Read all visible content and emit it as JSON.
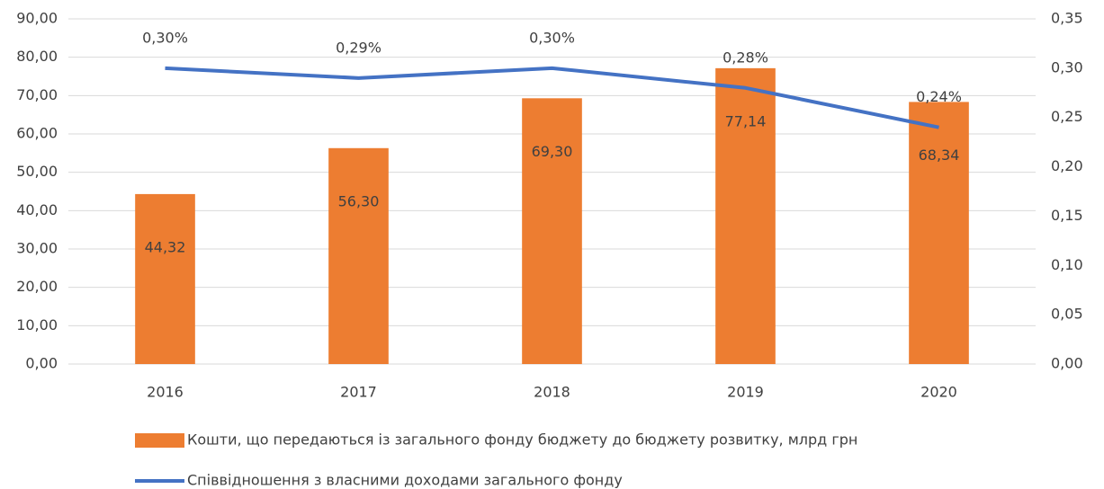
{
  "chart_data": {
    "type": "bar",
    "categories": [
      "2016",
      "2017",
      "2018",
      "2019",
      "2020"
    ],
    "series": [
      {
        "name": "Кошти, що передаються із загального фонду бюджету до бюджету розвитку, млрд грн",
        "color": "#ed7d31",
        "type": "bar",
        "values": [
          44.32,
          56.3,
          69.3,
          77.14,
          68.34
        ],
        "value_labels": [
          "44,32",
          "56,30",
          "69,30",
          "77,14",
          "68,34"
        ]
      },
      {
        "name": "Співвідношення з власними доходами загального фонду",
        "color": "#4472c4",
        "type": "line",
        "axis": "y2",
        "values": [
          0.3,
          0.29,
          0.3,
          0.28,
          0.24
        ],
        "value_labels": [
          "0,30%",
          "0,29%",
          "0,30%",
          "0,28%",
          "0,24%"
        ]
      }
    ],
    "ylim": [
      0,
      90
    ],
    "yticks": [
      {
        "value": 0,
        "label": "0,00"
      },
      {
        "value": 10,
        "label": "10,00"
      },
      {
        "value": 20,
        "label": "20,00"
      },
      {
        "value": 30,
        "label": "30,00"
      },
      {
        "value": 40,
        "label": "40,00"
      },
      {
        "value": 50,
        "label": "50,00"
      },
      {
        "value": 60,
        "label": "60,00"
      },
      {
        "value": 70,
        "label": "70,00"
      },
      {
        "value": 80,
        "label": "80,00"
      },
      {
        "value": 90,
        "label": "90,00"
      }
    ],
    "y2lim": [
      0,
      0.35
    ],
    "y2ticks": [
      {
        "value": 0,
        "label": "0,00"
      },
      {
        "value": 0.05,
        "label": "0,05"
      },
      {
        "value": 0.1,
        "label": "0,10"
      },
      {
        "value": 0.15,
        "label": "0,15"
      },
      {
        "value": 0.2,
        "label": "0,20"
      },
      {
        "value": 0.25,
        "label": "0,25"
      },
      {
        "value": 0.3,
        "label": "0,30"
      },
      {
        "value": 0.35,
        "label": "0,35"
      }
    ],
    "grid": true,
    "legend": "bottom"
  }
}
